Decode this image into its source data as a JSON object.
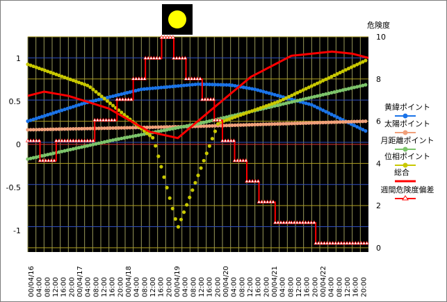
{
  "chart_data": {
    "type": "line",
    "title": "",
    "right_axis_title": "危険度",
    "left_ylim": [
      -1.25,
      1.25
    ],
    "left_ticks": [
      "1",
      "0.5",
      "0",
      "-0.5",
      "-1"
    ],
    "left_tick_values": [
      1,
      0.5,
      0,
      -0.5,
      -1
    ],
    "right_ylim": [
      -0.2,
      10
    ],
    "right_ticks": [
      "10",
      "8",
      "6",
      "4",
      "2",
      "0"
    ],
    "right_tick_values": [
      10,
      8,
      6,
      4,
      2,
      0
    ],
    "x_hours": [
      0,
      168
    ],
    "x_tick_labels": [
      "00/04/16",
      "04:00",
      "08:00",
      "12:00",
      "16:00",
      "20:00",
      "00/04/17",
      "04:00",
      "08:00",
      "12:00",
      "16:00",
      "20:00",
      "00/04/18",
      "04:00",
      "08:00",
      "12:00",
      "16:00",
      "20:00",
      "00/04/19",
      "04:00",
      "08:00",
      "12:00",
      "16:00",
      "20:00",
      "00/04/20",
      "04:00",
      "08:00",
      "12:00",
      "16:00",
      "20:00",
      "00/04/21",
      "04:00",
      "08:00",
      "12:00",
      "16:00",
      "20:00",
      "00/04/22",
      "04:00",
      "08:00",
      "12:00",
      "16:00",
      "20:00"
    ],
    "grid": true,
    "legend_position": "right",
    "series": [
      {
        "name": "黄緯ポイント",
        "axis": "left",
        "marker": "circle",
        "color": "#1a73e8",
        "x": [
          0,
          28,
          56,
          84,
          100,
          112,
          140,
          168
        ],
        "y": [
          0.27,
          0.48,
          0.64,
          0.7,
          0.69,
          0.64,
          0.46,
          0.14
        ]
      },
      {
        "name": "太陽ポイント",
        "axis": "left",
        "marker": "circle",
        "color": "#f0a07a",
        "x": [
          0,
          42,
          84,
          126,
          168
        ],
        "y": [
          0.17,
          0.19,
          0.21,
          0.24,
          0.27
        ]
      },
      {
        "name": "月距離ポイント",
        "axis": "left",
        "marker": "circle",
        "color": "#7cc46a",
        "x": [
          0,
          42,
          84,
          126,
          168
        ],
        "y": [
          -0.17,
          0.05,
          0.24,
          0.47,
          0.7
        ]
      },
      {
        "name": "位相ポイント",
        "axis": "left",
        "marker": "circle",
        "color": "#c8c800",
        "x": [
          0,
          30,
          62,
          74,
          94,
          124,
          168
        ],
        "y": [
          0.93,
          0.68,
          0.07,
          -0.97,
          0.25,
          0.5,
          0.99
        ]
      },
      {
        "name": "総合",
        "axis": "right",
        "marker": "none",
        "color": "#ff0000",
        "x": [
          0,
          8,
          20,
          40,
          60,
          74,
          90,
          110,
          130,
          150,
          160,
          168
        ],
        "y": [
          7.2,
          7.4,
          7.2,
          6.6,
          5.5,
          5.2,
          6.5,
          8.1,
          9.1,
          9.3,
          9.2,
          9.0
        ]
      },
      {
        "name": "週間危険度偏差",
        "axis": "left",
        "marker": "triangle",
        "color": "#ff0000",
        "step_segments": [
          [
            0,
            6,
            0.04
          ],
          [
            6,
            14,
            -0.19
          ],
          [
            14,
            33,
            0.04
          ],
          [
            33,
            44,
            0.28
          ],
          [
            44,
            52,
            0.52
          ],
          [
            52,
            58,
            0.76
          ],
          [
            58,
            66,
            1.0
          ],
          [
            66,
            72,
            1.24
          ],
          [
            72,
            78,
            1.0
          ],
          [
            78,
            86,
            0.76
          ],
          [
            86,
            92,
            0.52
          ],
          [
            92,
            96,
            0.28
          ],
          [
            96,
            102,
            0.04
          ],
          [
            102,
            108,
            -0.19
          ],
          [
            108,
            114,
            -0.43
          ],
          [
            114,
            122,
            -0.67
          ],
          [
            122,
            130,
            -0.91
          ],
          [
            130,
            142,
            -0.91
          ],
          [
            142,
            168,
            -1.15
          ]
        ]
      }
    ]
  }
}
